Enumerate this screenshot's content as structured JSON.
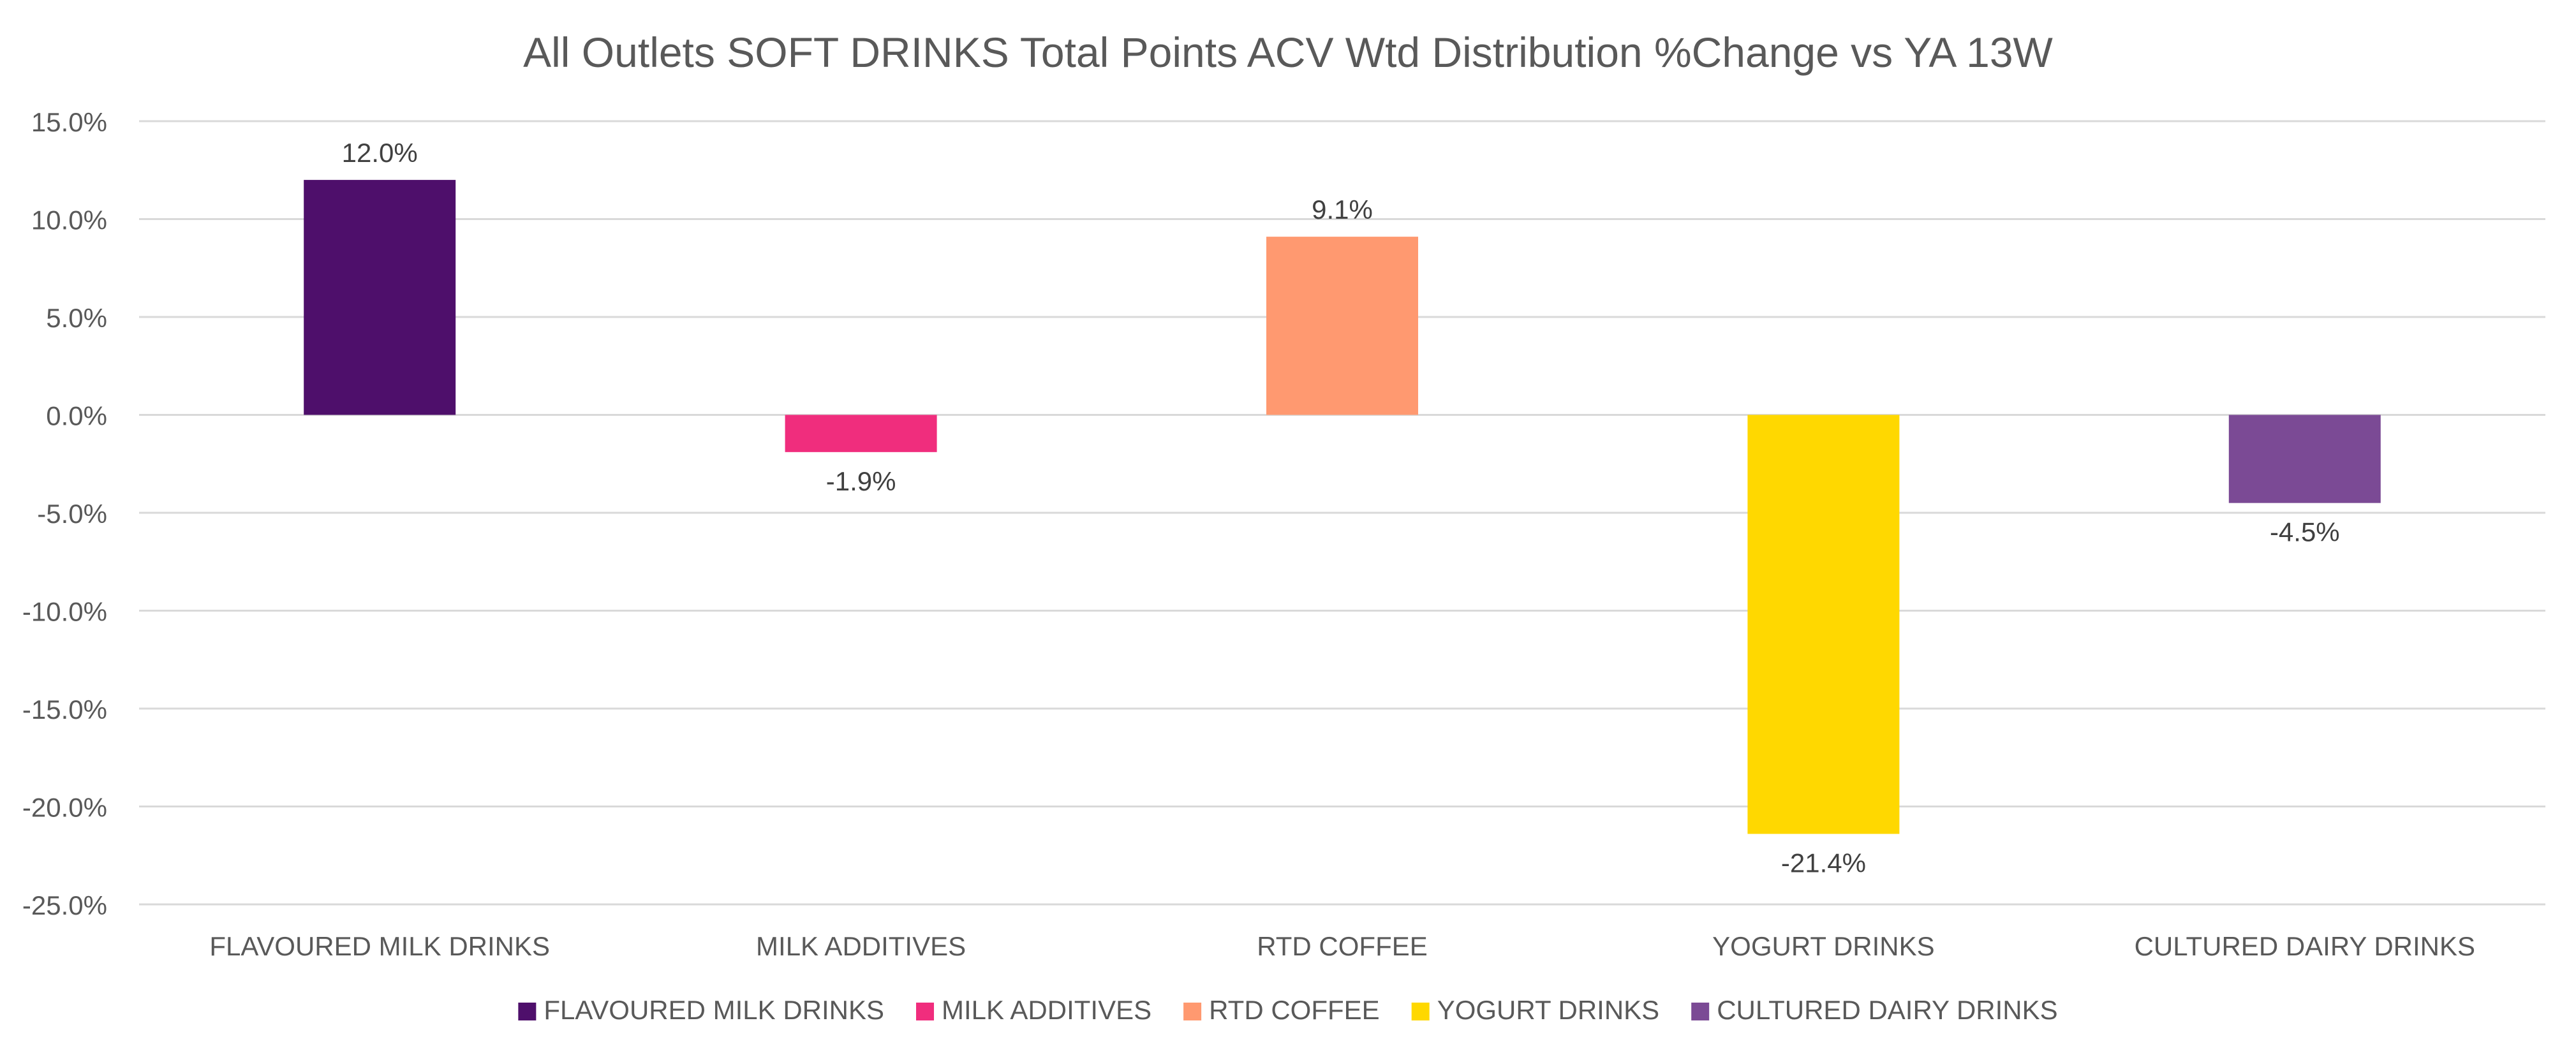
{
  "chart_data": {
    "type": "bar",
    "title": "All Outlets SOFT DRINKS Total Points ACV Wtd Distribution %Change vs YA  13W",
    "xlabel": "",
    "ylabel": "",
    "ylim": [
      -25,
      15
    ],
    "yticks": [
      15,
      10,
      5,
      0,
      -5,
      -10,
      -15,
      -20,
      -25
    ],
    "ytick_labels": [
      "15.0%",
      "10.0%",
      "5.0%",
      "0.0%",
      "-5.0%",
      "-10.0%",
      "-15.0%",
      "-20.0%",
      "-25.0%"
    ],
    "grid": true,
    "legend_position": "bottom",
    "categories": [
      "FLAVOURED MILK DRINKS",
      "MILK ADDITIVES",
      "RTD COFFEE",
      "YOGURT DRINKS",
      "CULTURED DAIRY DRINKS"
    ],
    "values": [
      12.0,
      -1.9,
      9.1,
      -21.4,
      -4.5
    ],
    "data_labels": [
      "12.0%",
      "-1.9%",
      "9.1%",
      "-21.4%",
      "-4.5%"
    ],
    "colors": [
      "#4E0F6B",
      "#F02D7D",
      "#FF9970",
      "#FFD800",
      "#7B4A95"
    ],
    "legend": [
      "FLAVOURED MILK DRINKS",
      "MILK ADDITIVES",
      "RTD COFFEE",
      "YOGURT DRINKS",
      "CULTURED DAIRY DRINKS"
    ]
  }
}
